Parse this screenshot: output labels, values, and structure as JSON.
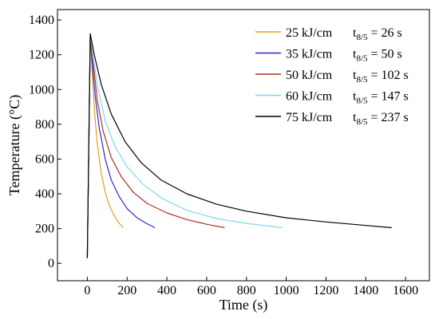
{
  "chart_data": {
    "type": "line",
    "title": "",
    "xlabel": "Time (s)",
    "ylabel": "Temperature (°C)",
    "xlim": [
      -150,
      1720
    ],
    "ylim": [
      -100,
      1460
    ],
    "xticks": [
      0,
      200,
      400,
      600,
      800,
      1000,
      1200,
      1400,
      1600
    ],
    "yticks": [
      0,
      200,
      400,
      600,
      800,
      1000,
      1200,
      1400
    ],
    "legend_position": "top-right",
    "grid": false,
    "series": [
      {
        "heat_input": "25 kJ/cm",
        "t_label": "t",
        "t_sub": "8/5",
        "t_value": " = 26 s",
        "color": "#e0a020",
        "points": [
          [
            0,
            30
          ],
          [
            15,
            1320
          ],
          [
            25,
            1090
          ],
          [
            35,
            890
          ],
          [
            50,
            690
          ],
          [
            70,
            520
          ],
          [
            90,
            410
          ],
          [
            110,
            335
          ],
          [
            130,
            285
          ],
          [
            150,
            245
          ],
          [
            180,
            205
          ]
        ]
      },
      {
        "heat_input": "35 kJ/cm",
        "t_label": "t",
        "t_sub": "8/5",
        "t_value": " = 50 s",
        "color": "#2a2ac8",
        "points": [
          [
            0,
            30
          ],
          [
            15,
            1320
          ],
          [
            25,
            1150
          ],
          [
            40,
            960
          ],
          [
            60,
            780
          ],
          [
            90,
            600
          ],
          [
            120,
            480
          ],
          [
            160,
            385
          ],
          [
            200,
            315
          ],
          [
            250,
            262
          ],
          [
            300,
            228
          ],
          [
            340,
            205
          ]
        ]
      },
      {
        "heat_input": "50 kJ/cm",
        "t_label": "t",
        "t_sub": "8/5",
        "t_value": " = 102 s",
        "color": "#b03028",
        "points": [
          [
            0,
            30
          ],
          [
            15,
            1320
          ],
          [
            30,
            1150
          ],
          [
            50,
            940
          ],
          [
            80,
            760
          ],
          [
            120,
            610
          ],
          [
            170,
            500
          ],
          [
            230,
            410
          ],
          [
            300,
            345
          ],
          [
            400,
            290
          ],
          [
            500,
            252
          ],
          [
            600,
            225
          ],
          [
            690,
            205
          ]
        ]
      },
      {
        "heat_input": "60 kJ/cm",
        "t_label": "t",
        "t_sub": "8/5",
        "t_value": " = 147 s",
        "color": "#80d8f0",
        "points": [
          [
            0,
            30
          ],
          [
            15,
            1320
          ],
          [
            30,
            1180
          ],
          [
            55,
            1000
          ],
          [
            90,
            820
          ],
          [
            140,
            670
          ],
          [
            200,
            555
          ],
          [
            280,
            455
          ],
          [
            380,
            370
          ],
          [
            500,
            305
          ],
          [
            650,
            258
          ],
          [
            800,
            230
          ],
          [
            980,
            205
          ]
        ]
      },
      {
        "heat_input": "75 kJ/cm",
        "t_label": "t",
        "t_sub": "8/5",
        "t_value": " = 237 s",
        "color": "#000000",
        "points": [
          [
            0,
            30
          ],
          [
            15,
            1320
          ],
          [
            35,
            1200
          ],
          [
            70,
            1030
          ],
          [
            120,
            860
          ],
          [
            190,
            700
          ],
          [
            270,
            580
          ],
          [
            370,
            480
          ],
          [
            500,
            400
          ],
          [
            650,
            340
          ],
          [
            800,
            300
          ],
          [
            1000,
            262
          ],
          [
            1200,
            238
          ],
          [
            1400,
            218
          ],
          [
            1530,
            205
          ]
        ]
      }
    ]
  }
}
